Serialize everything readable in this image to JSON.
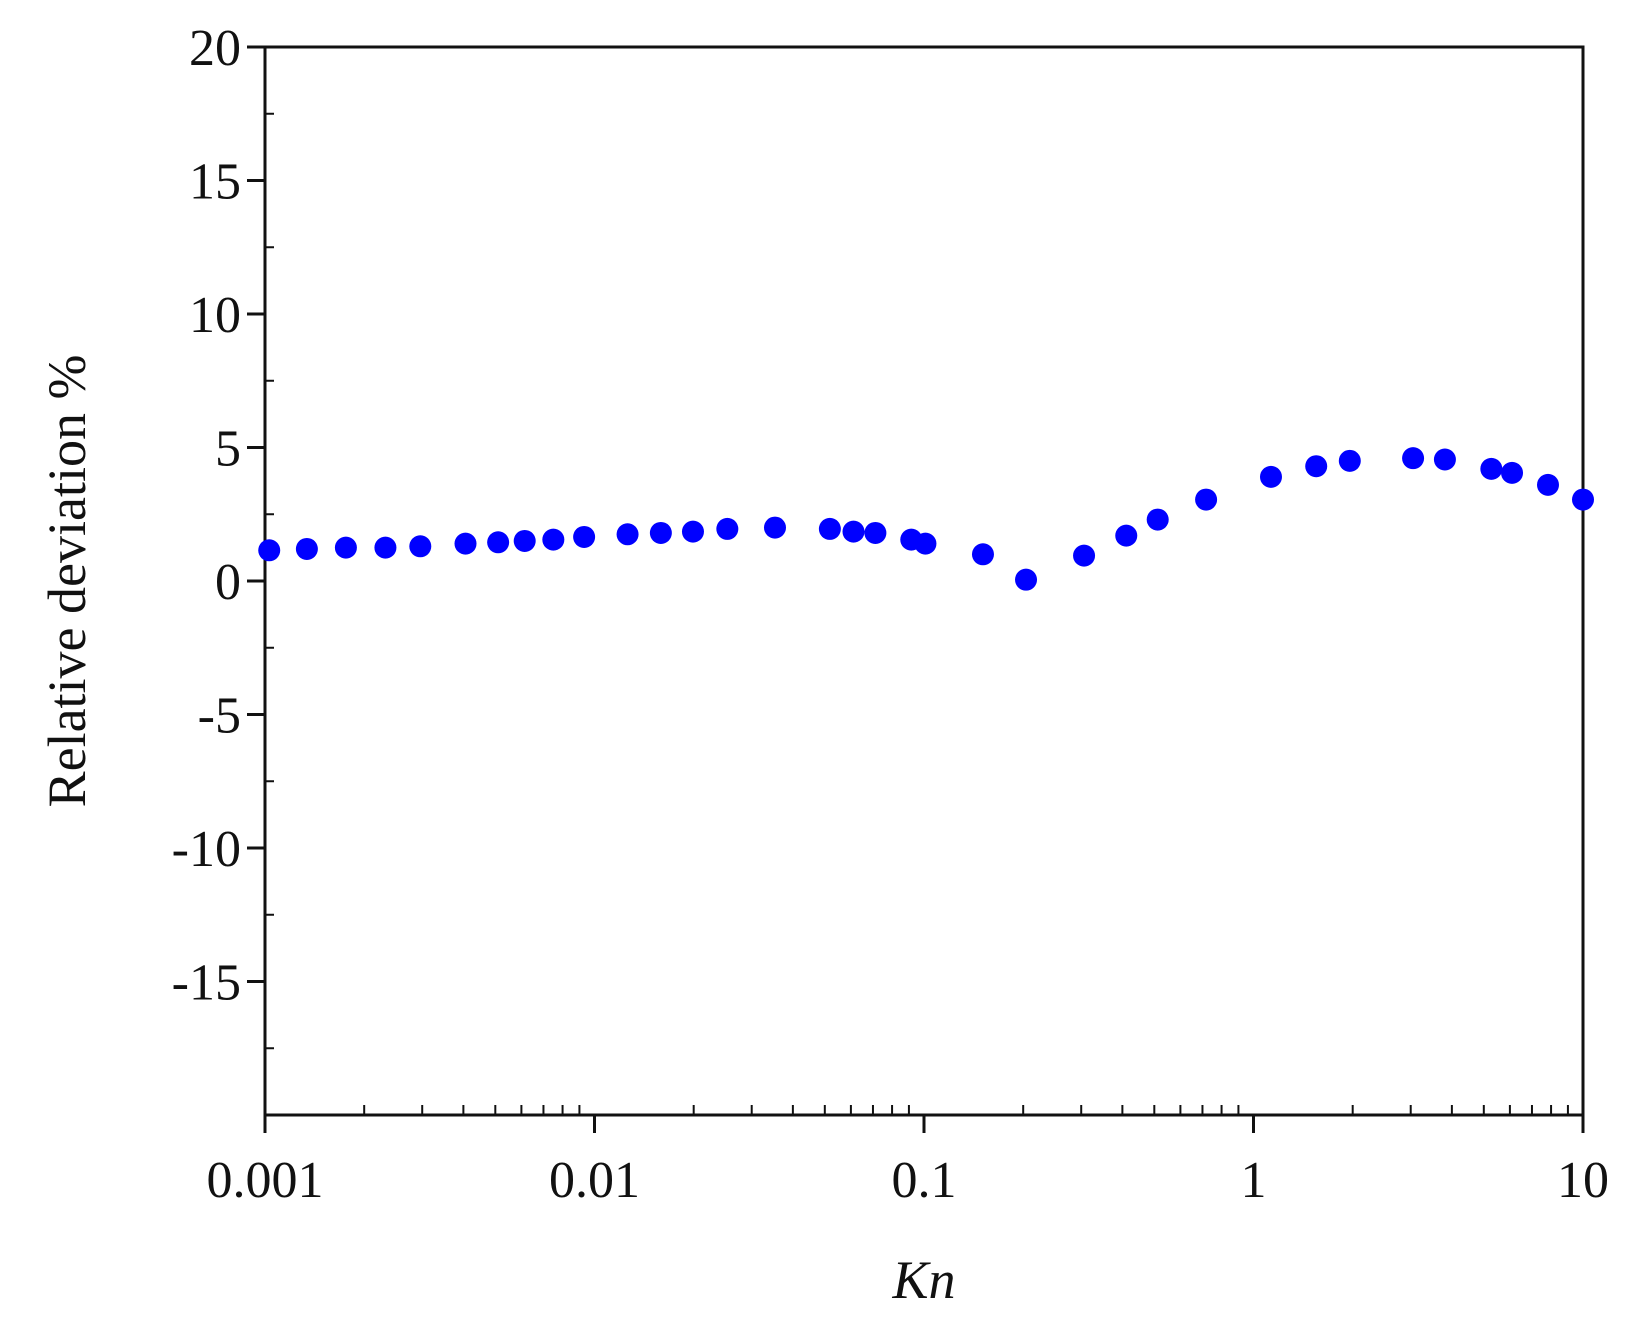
{
  "chart_data": {
    "type": "scatter",
    "title": "",
    "xlabel": "Kn",
    "ylabel": "Relative deviation %",
    "xscale": "log",
    "xlim": [
      0.001,
      10
    ],
    "ylim": [
      -20,
      20
    ],
    "x_ticks": [
      0.001,
      0.01,
      0.1,
      1,
      10
    ],
    "x_tick_labels": [
      "0.001",
      "0.01",
      "0.1",
      "1",
      "10"
    ],
    "y_ticks": [
      20,
      15,
      10,
      5,
      0,
      -5,
      -10,
      -15
    ],
    "y_tick_labels": [
      "20",
      "15",
      "10",
      "5",
      "0",
      "-5",
      "-10",
      "-15"
    ],
    "grid": false,
    "legend": "none",
    "marker_color": "#0000ff",
    "series": [
      {
        "x": [
          0.00103,
          0.00134,
          0.00176,
          0.00232,
          0.00296,
          0.00406,
          0.0051,
          0.00614,
          0.0075,
          0.0093,
          0.0126,
          0.0159,
          0.0199,
          0.0253,
          0.0353,
          0.0518,
          0.0611,
          0.0712,
          0.0915,
          0.101,
          0.151,
          0.204,
          0.306,
          0.411,
          0.512,
          0.718,
          1.13,
          1.55,
          1.96,
          3.05,
          3.81,
          5.27,
          6.09,
          7.83,
          10.0
        ],
        "y": [
          1.15,
          1.2,
          1.25,
          1.25,
          1.3,
          1.4,
          1.45,
          1.5,
          1.55,
          1.65,
          1.75,
          1.8,
          1.85,
          1.95,
          2.0,
          1.95,
          1.85,
          1.8,
          1.55,
          1.4,
          1.0,
          0.05,
          0.95,
          1.7,
          2.3,
          3.05,
          3.9,
          4.3,
          4.5,
          4.6,
          4.55,
          4.2,
          4.05,
          3.6,
          3.05
        ]
      }
    ]
  }
}
